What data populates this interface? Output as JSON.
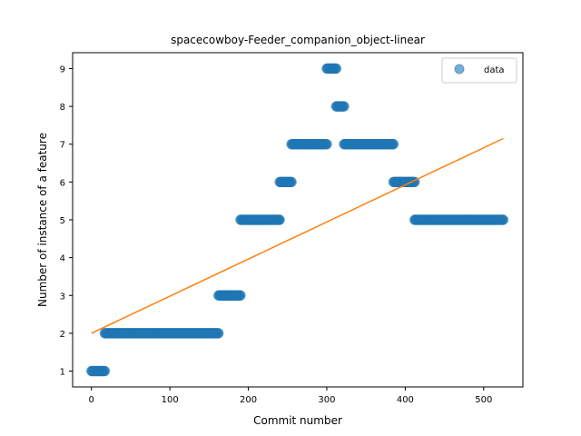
{
  "chart_data": {
    "type": "scatter",
    "title": "spacecowboy-Feeder_companion_object-linear",
    "xlabel": "Commit number",
    "ylabel": "Number of instance of a feature",
    "xlim": [
      -24,
      550
    ],
    "ylim": [
      0.58,
      9.42
    ],
    "xticks": [
      0,
      100,
      200,
      300,
      400,
      500
    ],
    "yticks": [
      1,
      2,
      3,
      4,
      5,
      6,
      7,
      8,
      9
    ],
    "grid": false,
    "legend_position": "top-right",
    "series": [
      {
        "name": "data",
        "kind": "scatter",
        "color": "#1f77b4",
        "opacity": 0.6,
        "runs": [
          {
            "x_start": 0,
            "x_end": 17,
            "y": 1
          },
          {
            "x_start": 17,
            "x_end": 162,
            "y": 2
          },
          {
            "x_start": 162,
            "x_end": 190,
            "y": 3
          },
          {
            "x_start": 190,
            "x_end": 240,
            "y": 5
          },
          {
            "x_start": 240,
            "x_end": 255,
            "y": 6
          },
          {
            "x_start": 255,
            "x_end": 300,
            "y": 7
          },
          {
            "x_start": 300,
            "x_end": 312,
            "y": 9
          },
          {
            "x_start": 312,
            "x_end": 322,
            "y": 8
          },
          {
            "x_start": 322,
            "x_end": 385,
            "y": 7
          },
          {
            "x_start": 385,
            "x_end": 412,
            "y": 6
          },
          {
            "x_start": 412,
            "x_end": 525,
            "y": 5
          }
        ]
      },
      {
        "kind": "line",
        "color": "#ff7f0e",
        "x": [
          0,
          525
        ],
        "y": [
          2.0,
          7.15
        ]
      }
    ]
  }
}
